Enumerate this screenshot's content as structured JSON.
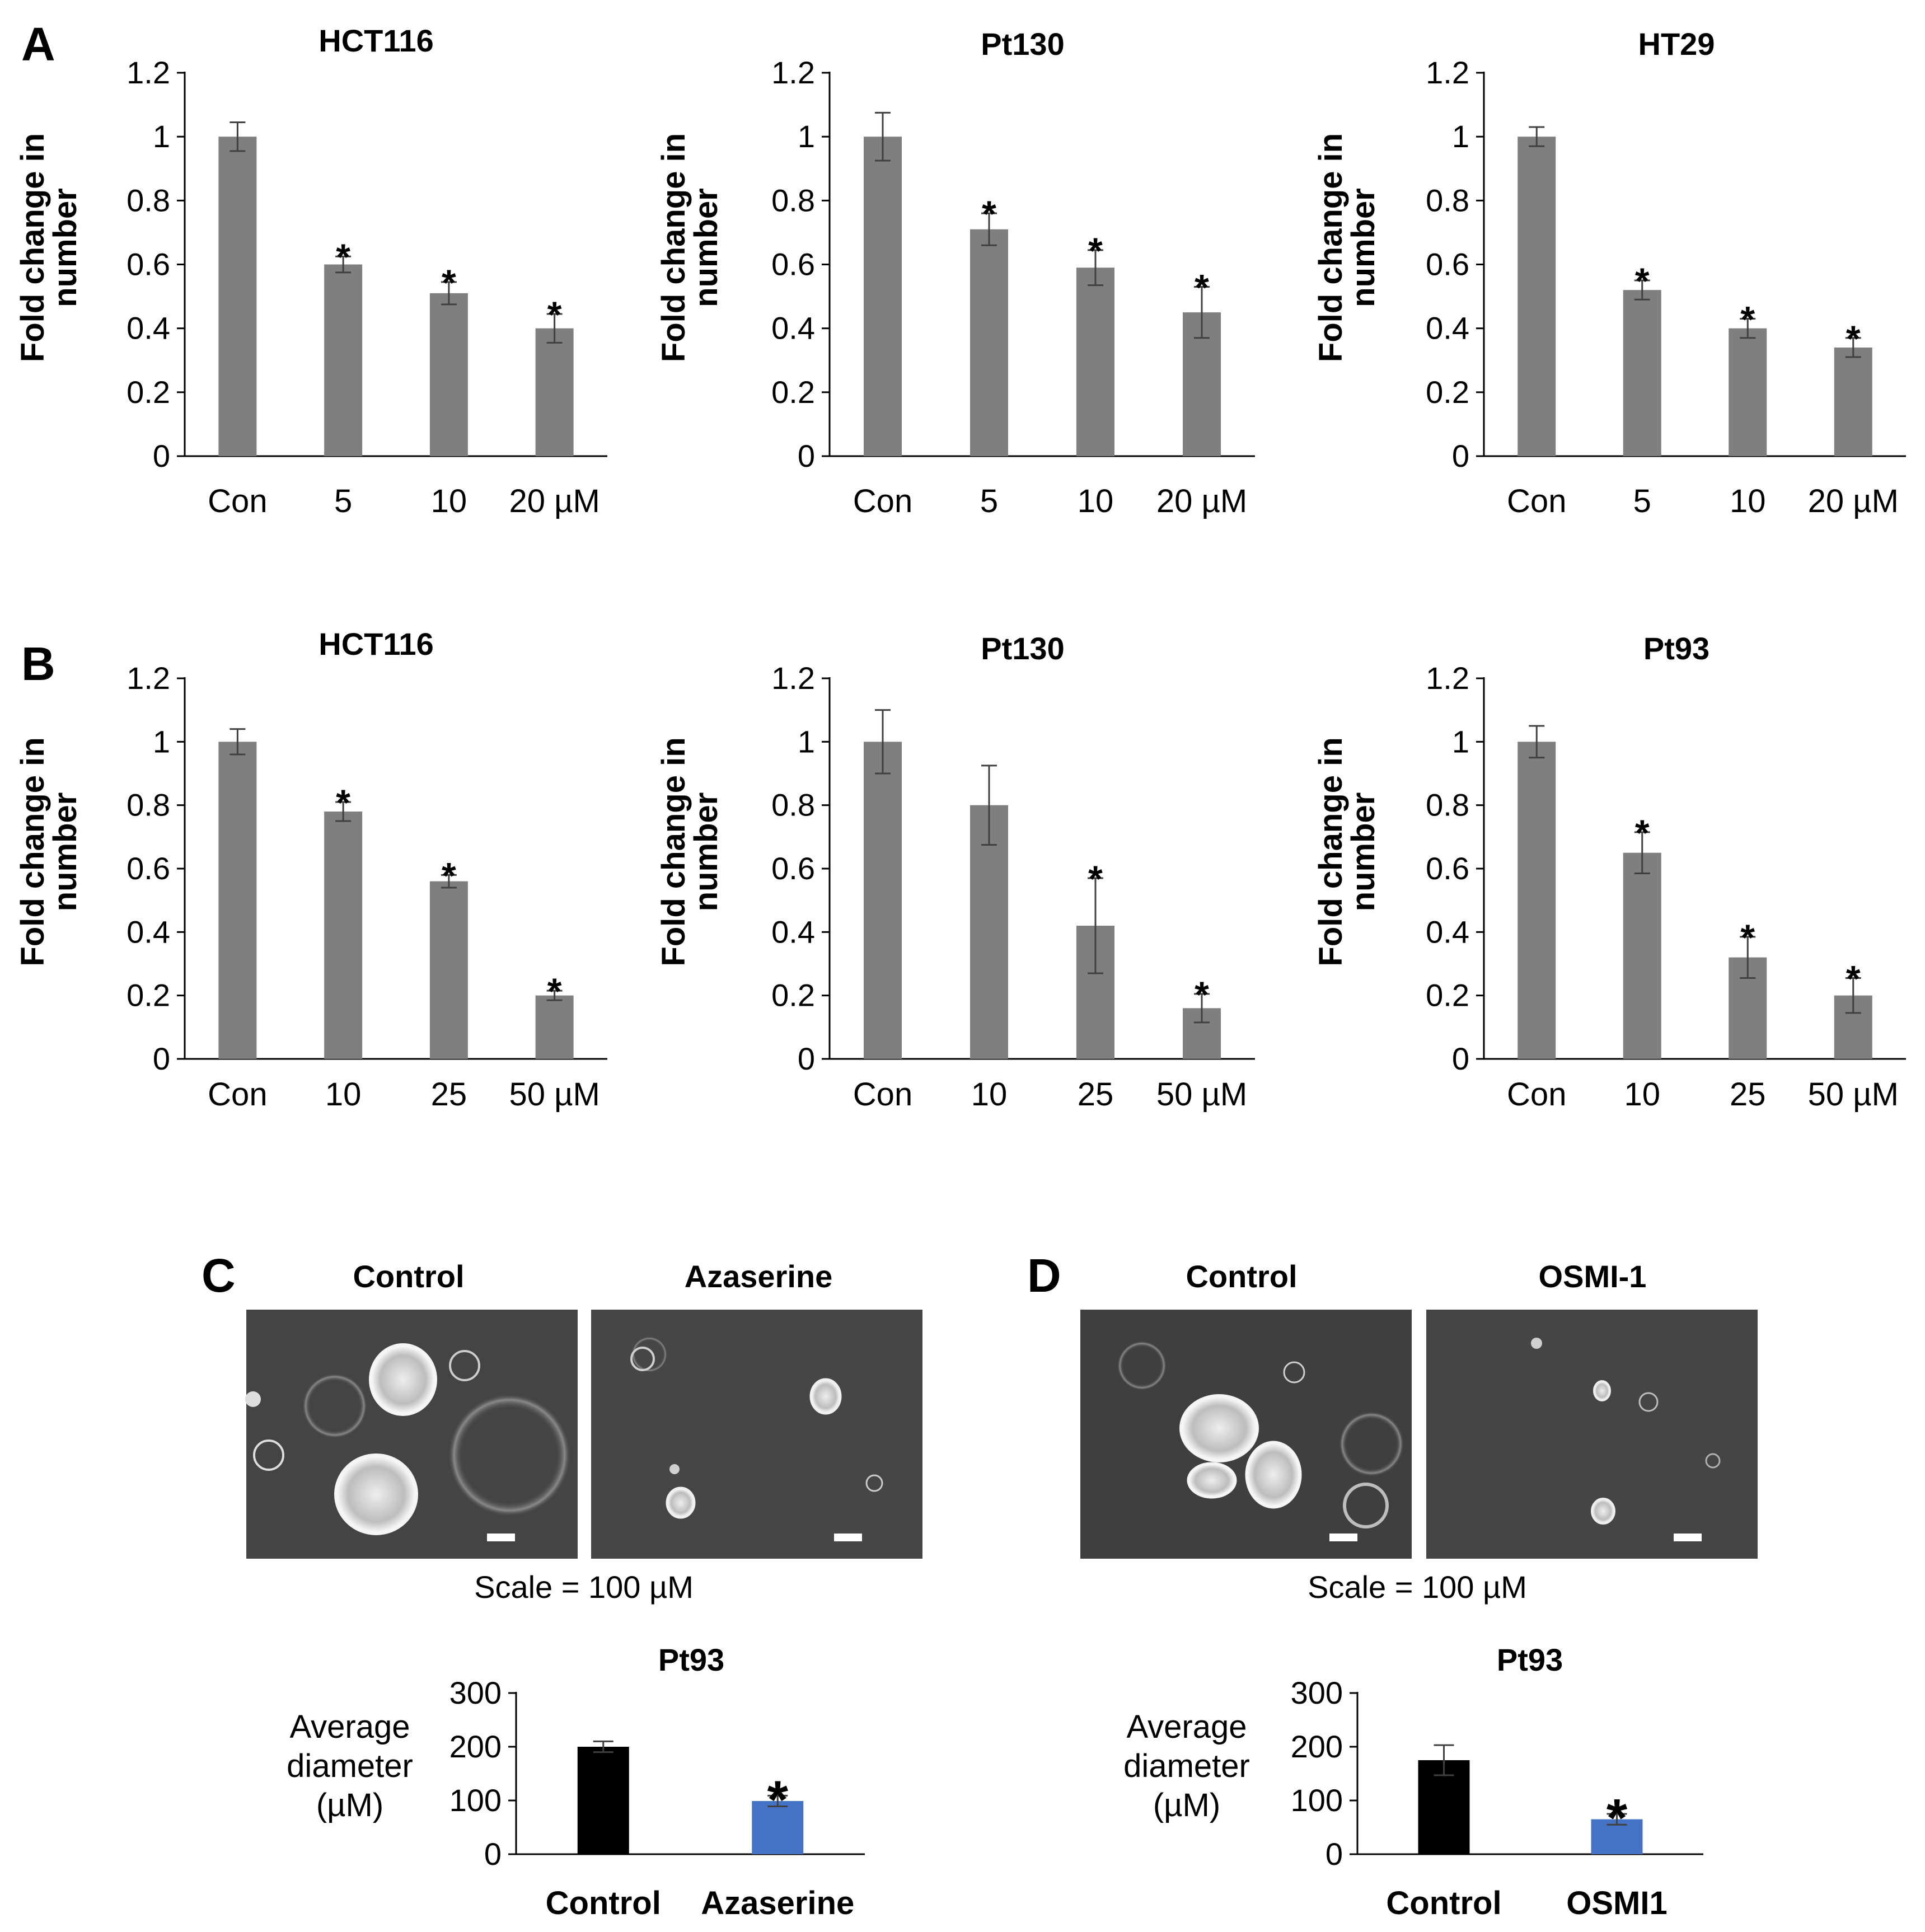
{
  "panels": {
    "A": "A",
    "B": "B",
    "C": "C",
    "D": "D"
  },
  "micrographs": {
    "C": {
      "left_title": "Control",
      "right_title": "Azaserine",
      "scale_note": "Scale = 100 µM"
    },
    "D": {
      "left_title": "Control",
      "right_title": "OSMI-1",
      "scale_note": "Scale = 100 µM"
    }
  },
  "chart_data": [
    {
      "id": "A1",
      "type": "bar",
      "title": "HCT116",
      "ylabel": "Fold change in number",
      "categories": [
        "Con",
        "5",
        "10",
        "20 µM"
      ],
      "values": [
        1.0,
        0.6,
        0.51,
        0.4
      ],
      "errors": [
        0.045,
        0.025,
        0.035,
        0.045
      ],
      "significant": [
        false,
        true,
        true,
        true
      ],
      "ylim": [
        0,
        1.2
      ],
      "yticks": [
        "0",
        "0.2",
        "0.4",
        "0.6",
        "0.8",
        "1",
        "1.2"
      ],
      "significance_marker": "*",
      "bar_color": "#7f7f7f"
    },
    {
      "id": "A2",
      "type": "bar",
      "title": "Pt130",
      "ylabel": "Fold change in number",
      "categories": [
        "Con",
        "5",
        "10",
        "20 µM"
      ],
      "values": [
        1.0,
        0.71,
        0.59,
        0.45
      ],
      "errors": [
        0.075,
        0.05,
        0.055,
        0.08
      ],
      "significant": [
        false,
        true,
        true,
        true
      ],
      "ylim": [
        0,
        1.2
      ],
      "yticks": [
        "0",
        "0.2",
        "0.4",
        "0.6",
        "0.8",
        "1",
        "1.2"
      ],
      "significance_marker": "*",
      "bar_color": "#7f7f7f"
    },
    {
      "id": "A3",
      "type": "bar",
      "title": "HT29",
      "ylabel": "Fold change in number",
      "categories": [
        "Con",
        "5",
        "10",
        "20 µM"
      ],
      "values": [
        1.0,
        0.52,
        0.4,
        0.34
      ],
      "errors": [
        0.03,
        0.03,
        0.03,
        0.03
      ],
      "significant": [
        false,
        true,
        true,
        true
      ],
      "ylim": [
        0,
        1.2
      ],
      "yticks": [
        "0",
        "0.2",
        "0.4",
        "0.6",
        "0.8",
        "1",
        "1.2"
      ],
      "significance_marker": "*",
      "bar_color": "#7f7f7f"
    },
    {
      "id": "B1",
      "type": "bar",
      "title": "HCT116",
      "ylabel": "Fold change in number",
      "categories": [
        "Con",
        "10",
        "25",
        "50 µM"
      ],
      "values": [
        1.0,
        0.78,
        0.56,
        0.2
      ],
      "errors": [
        0.04,
        0.03,
        0.02,
        0.015
      ],
      "significant": [
        false,
        true,
        true,
        true
      ],
      "ylim": [
        0,
        1.2
      ],
      "yticks": [
        "0",
        "0.2",
        "0.4",
        "0.6",
        "0.8",
        "1",
        "1.2"
      ],
      "significance_marker": "*",
      "bar_color": "#7f7f7f"
    },
    {
      "id": "B2",
      "type": "bar",
      "title": "Pt130",
      "ylabel": "Fold change in number",
      "categories": [
        "Con",
        "10",
        "25",
        "50 µM"
      ],
      "values": [
        1.0,
        0.8,
        0.42,
        0.16
      ],
      "errors": [
        0.1,
        0.125,
        0.15,
        0.045
      ],
      "significant": [
        false,
        false,
        true,
        true
      ],
      "ylim": [
        0,
        1.2
      ],
      "yticks": [
        "0",
        "0.2",
        "0.4",
        "0.6",
        "0.8",
        "1",
        "1.2"
      ],
      "significance_marker": "*",
      "bar_color": "#7f7f7f"
    },
    {
      "id": "B3",
      "type": "bar",
      "title": "Pt93",
      "ylabel": "Fold change in number",
      "categories": [
        "Con",
        "10",
        "25",
        "50 µM"
      ],
      "values": [
        1.0,
        0.65,
        0.32,
        0.2
      ],
      "errors": [
        0.05,
        0.065,
        0.065,
        0.055
      ],
      "significant": [
        false,
        true,
        true,
        true
      ],
      "ylim": [
        0,
        1.2
      ],
      "yticks": [
        "0",
        "0.2",
        "0.4",
        "0.6",
        "0.8",
        "1",
        "1.2"
      ],
      "significance_marker": "*",
      "bar_color": "#7f7f7f"
    },
    {
      "id": "C1",
      "type": "bar",
      "title": "Pt93",
      "ylabel": "Average diameter (µM)",
      "categories": [
        "Control",
        "Azaserine"
      ],
      "values": [
        200,
        99
      ],
      "errors": [
        10,
        10
      ],
      "significant": [
        false,
        true
      ],
      "ylim": [
        0,
        300
      ],
      "yticks": [
        "0",
        "100",
        "200",
        "300"
      ],
      "significance_marker": "*",
      "bar_colors": [
        "#000000",
        "#4472c4"
      ]
    },
    {
      "id": "D1",
      "type": "bar",
      "title": "Pt93",
      "ylabel": "Average diameter (µM)",
      "categories": [
        "Control",
        "OSMI1"
      ],
      "values": [
        175,
        65
      ],
      "errors": [
        28,
        10
      ],
      "significant": [
        false,
        true
      ],
      "ylim": [
        0,
        300
      ],
      "yticks": [
        "0",
        "100",
        "200",
        "300"
      ],
      "significance_marker": "*",
      "bar_colors": [
        "#000000",
        "#4472c4"
      ]
    }
  ]
}
